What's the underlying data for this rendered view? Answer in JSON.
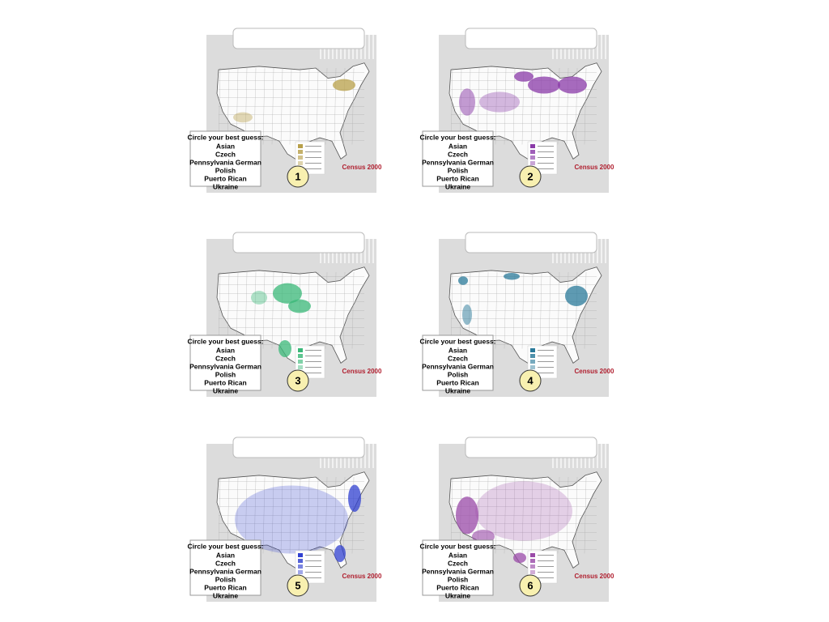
{
  "panels": [
    {
      "number": "1",
      "prompt": "Circle your best guess:",
      "options": [
        "Asian",
        "Czech",
        "Pennsylvania German",
        "Polish",
        "Puerto Rican",
        "Ukraine"
      ],
      "logo": "Census 2000",
      "color": "#b8a04a"
    },
    {
      "number": "2",
      "prompt": "Circle your best guess:",
      "options": [
        "Asian",
        "Czech",
        "Pennsylvania German",
        "Polish",
        "Puerto Rican",
        "Ukraine"
      ],
      "logo": "Census 2000",
      "color": "#8a3aa8"
    },
    {
      "number": "3",
      "prompt": "Circle your best guess:",
      "options": [
        "Asian",
        "Czech",
        "Pennsylvania German",
        "Polish",
        "Puerto Rican",
        "Ukraine"
      ],
      "logo": "Census 2000",
      "color": "#3ab878"
    },
    {
      "number": "4",
      "prompt": "Circle your best guess:",
      "options": [
        "Asian",
        "Czech",
        "Pennsylvania German",
        "Polish",
        "Puerto Rican",
        "Ukraine"
      ],
      "logo": "Census 2000",
      "color": "#2a7a9a"
    },
    {
      "number": "5",
      "prompt": "Circle your best guess:",
      "options": [
        "Asian",
        "Czech",
        "Pennsylvania German",
        "Polish",
        "Puerto Rican",
        "Ukraine"
      ],
      "logo": "Census 2000",
      "color": "#3040d0"
    },
    {
      "number": "6",
      "prompt": "Circle your best guess:",
      "options": [
        "Asian",
        "Czech",
        "Pennsylvania German",
        "Polish",
        "Puerto Rican",
        "Ukraine"
      ],
      "logo": "Census 2000",
      "color": "#9a4aa8"
    }
  ]
}
